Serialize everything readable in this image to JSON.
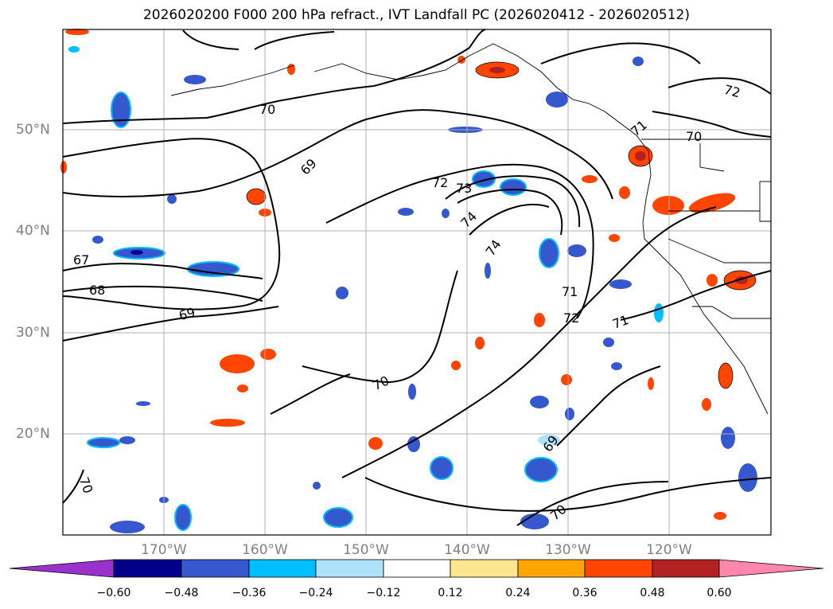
{
  "title": "2026020200 F000 200 hPa refract., IVT Landfall PC (2026020412 - 2026020512)",
  "lat_labels": [
    "50°N",
    "40°N",
    "30°N",
    "20°N"
  ],
  "lon_labels": [
    "170°W",
    "160°W",
    "150°W",
    "140°W",
    "130°W",
    "120°W"
  ],
  "contour_labels": [
    "70",
    "69",
    "67",
    "68",
    "69",
    "72",
    "73",
    "74",
    "74",
    "71",
    "72",
    "71",
    "70",
    "69",
    "70",
    "70",
    "72",
    "71",
    "70"
  ],
  "colorbar": {
    "ticks": [
      "−0.60",
      "−0.48",
      "−0.36",
      "−0.24",
      "−0.12",
      "0.12",
      "0.24",
      "0.36",
      "0.48",
      "0.60"
    ],
    "colors": [
      "#9932cc",
      "#00008b",
      "#3558cf",
      "#00bfff",
      "#aee1fa",
      "#ffffff",
      "#fce68e",
      "#ffa500",
      "#ff4500",
      "#b22222",
      "#ff86ac"
    ]
  }
}
